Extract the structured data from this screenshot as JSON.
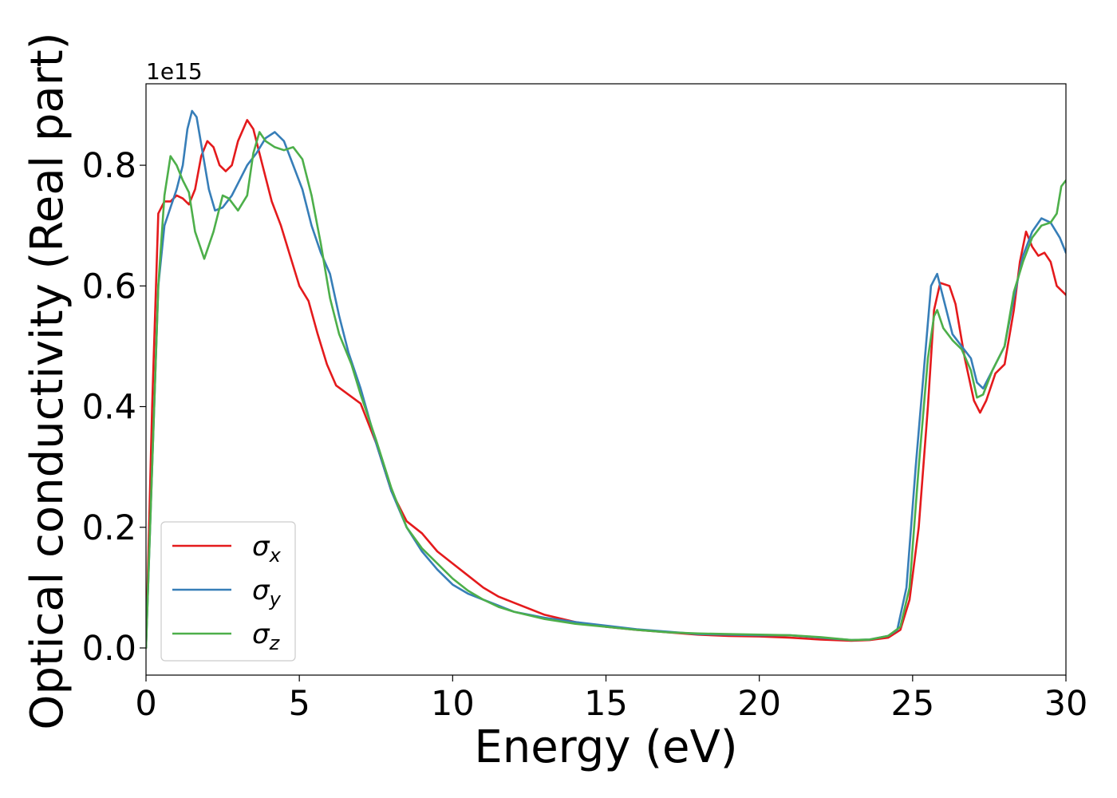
{
  "chart_data": {
    "type": "line",
    "xlabel": "Energy (eV)",
    "ylabel": "Optical conductivity (Real part)",
    "y_offset_label": "1e15",
    "xlim": [
      0,
      30
    ],
    "ylim": [
      -0.045,
      0.935
    ],
    "x_scale_note": "y values in units of 1e15",
    "xticks": [
      0,
      5,
      10,
      15,
      20,
      25,
      30
    ],
    "xtick_labels": [
      "0",
      "5",
      "10",
      "15",
      "20",
      "25",
      "30"
    ],
    "yticks": [
      0.0,
      0.2,
      0.4,
      0.6,
      0.8
    ],
    "ytick_labels": [
      "0.0",
      "0.2",
      "0.4",
      "0.6",
      "0.8"
    ],
    "grid": false,
    "legend_position": "lower-left",
    "series": [
      {
        "name": "σ",
        "subscript": "x",
        "color": "#e41a1c",
        "points": [
          [
            0,
            0
          ],
          [
            0.2,
            0.4
          ],
          [
            0.4,
            0.72
          ],
          [
            0.6,
            0.74
          ],
          [
            0.8,
            0.74
          ],
          [
            1.0,
            0.75
          ],
          [
            1.2,
            0.745
          ],
          [
            1.4,
            0.735
          ],
          [
            1.6,
            0.76
          ],
          [
            1.8,
            0.815
          ],
          [
            2.0,
            0.84
          ],
          [
            2.2,
            0.83
          ],
          [
            2.4,
            0.8
          ],
          [
            2.6,
            0.79
          ],
          [
            2.8,
            0.8
          ],
          [
            3.0,
            0.84
          ],
          [
            3.3,
            0.875
          ],
          [
            3.5,
            0.86
          ],
          [
            3.8,
            0.8
          ],
          [
            4.1,
            0.74
          ],
          [
            4.4,
            0.7
          ],
          [
            4.7,
            0.65
          ],
          [
            5.0,
            0.6
          ],
          [
            5.3,
            0.575
          ],
          [
            5.6,
            0.52
          ],
          [
            5.9,
            0.47
          ],
          [
            6.2,
            0.435
          ],
          [
            6.6,
            0.42
          ],
          [
            7.0,
            0.405
          ],
          [
            7.5,
            0.34
          ],
          [
            8.0,
            0.26
          ],
          [
            8.5,
            0.21
          ],
          [
            9.0,
            0.19
          ],
          [
            9.5,
            0.16
          ],
          [
            10.0,
            0.14
          ],
          [
            10.5,
            0.12
          ],
          [
            11.0,
            0.1
          ],
          [
            11.5,
            0.085
          ],
          [
            12.0,
            0.075
          ],
          [
            13.0,
            0.055
          ],
          [
            14.0,
            0.043
          ],
          [
            15.0,
            0.035
          ],
          [
            16.0,
            0.03
          ],
          [
            17.0,
            0.026
          ],
          [
            18.0,
            0.022
          ],
          [
            19.0,
            0.02
          ],
          [
            20.0,
            0.019
          ],
          [
            21.0,
            0.017
          ],
          [
            22.0,
            0.014
          ],
          [
            23.0,
            0.012
          ],
          [
            23.6,
            0.013
          ],
          [
            24.2,
            0.017
          ],
          [
            24.6,
            0.03
          ],
          [
            24.9,
            0.08
          ],
          [
            25.2,
            0.2
          ],
          [
            25.5,
            0.4
          ],
          [
            25.7,
            0.56
          ],
          [
            25.9,
            0.605
          ],
          [
            26.2,
            0.6
          ],
          [
            26.4,
            0.57
          ],
          [
            26.7,
            0.48
          ],
          [
            27.0,
            0.41
          ],
          [
            27.2,
            0.39
          ],
          [
            27.4,
            0.41
          ],
          [
            27.7,
            0.455
          ],
          [
            28.0,
            0.47
          ],
          [
            28.3,
            0.56
          ],
          [
            28.5,
            0.64
          ],
          [
            28.7,
            0.69
          ],
          [
            28.9,
            0.665
          ],
          [
            29.1,
            0.65
          ],
          [
            29.3,
            0.655
          ],
          [
            29.5,
            0.64
          ],
          [
            29.7,
            0.6
          ],
          [
            30.0,
            0.585
          ]
        ]
      },
      {
        "name": "σ",
        "subscript": "y",
        "color": "#377eb8",
        "points": [
          [
            0,
            0
          ],
          [
            0.2,
            0.3
          ],
          [
            0.4,
            0.6
          ],
          [
            0.6,
            0.7
          ],
          [
            0.8,
            0.73
          ],
          [
            1.0,
            0.76
          ],
          [
            1.2,
            0.8
          ],
          [
            1.35,
            0.86
          ],
          [
            1.5,
            0.89
          ],
          [
            1.65,
            0.88
          ],
          [
            1.85,
            0.82
          ],
          [
            2.05,
            0.76
          ],
          [
            2.25,
            0.725
          ],
          [
            2.5,
            0.73
          ],
          [
            2.8,
            0.75
          ],
          [
            3.0,
            0.77
          ],
          [
            3.3,
            0.8
          ],
          [
            3.6,
            0.82
          ],
          [
            3.9,
            0.845
          ],
          [
            4.2,
            0.855
          ],
          [
            4.5,
            0.84
          ],
          [
            4.8,
            0.8
          ],
          [
            5.1,
            0.76
          ],
          [
            5.4,
            0.7
          ],
          [
            5.7,
            0.655
          ],
          [
            6.0,
            0.62
          ],
          [
            6.3,
            0.55
          ],
          [
            6.6,
            0.49
          ],
          [
            7.0,
            0.43
          ],
          [
            7.5,
            0.34
          ],
          [
            8.0,
            0.26
          ],
          [
            8.5,
            0.2
          ],
          [
            9.0,
            0.16
          ],
          [
            9.5,
            0.13
          ],
          [
            10.0,
            0.105
          ],
          [
            10.5,
            0.09
          ],
          [
            11.0,
            0.08
          ],
          [
            11.5,
            0.07
          ],
          [
            12.0,
            0.06
          ],
          [
            13.0,
            0.05
          ],
          [
            14.0,
            0.043
          ],
          [
            15.0,
            0.037
          ],
          [
            16.0,
            0.031
          ],
          [
            17.0,
            0.027
          ],
          [
            18.0,
            0.023
          ],
          [
            19.0,
            0.022
          ],
          [
            20.0,
            0.021
          ],
          [
            21.0,
            0.021
          ],
          [
            22.0,
            0.017
          ],
          [
            23.0,
            0.013
          ],
          [
            23.6,
            0.014
          ],
          [
            24.2,
            0.02
          ],
          [
            24.5,
            0.03
          ],
          [
            24.8,
            0.1
          ],
          [
            25.1,
            0.3
          ],
          [
            25.4,
            0.48
          ],
          [
            25.6,
            0.6
          ],
          [
            25.8,
            0.62
          ],
          [
            26.0,
            0.58
          ],
          [
            26.3,
            0.52
          ],
          [
            26.6,
            0.5
          ],
          [
            26.9,
            0.48
          ],
          [
            27.1,
            0.44
          ],
          [
            27.3,
            0.43
          ],
          [
            27.6,
            0.46
          ],
          [
            28.0,
            0.5
          ],
          [
            28.3,
            0.58
          ],
          [
            28.6,
            0.65
          ],
          [
            28.9,
            0.69
          ],
          [
            29.2,
            0.712
          ],
          [
            29.5,
            0.705
          ],
          [
            29.8,
            0.68
          ],
          [
            30.0,
            0.655
          ]
        ]
      },
      {
        "name": "σ",
        "subscript": "z",
        "color": "#4daf4a",
        "points": [
          [
            0,
            0
          ],
          [
            0.2,
            0.3
          ],
          [
            0.4,
            0.6
          ],
          [
            0.6,
            0.75
          ],
          [
            0.8,
            0.815
          ],
          [
            1.0,
            0.8
          ],
          [
            1.2,
            0.775
          ],
          [
            1.4,
            0.755
          ],
          [
            1.6,
            0.69
          ],
          [
            1.9,
            0.645
          ],
          [
            2.2,
            0.69
          ],
          [
            2.5,
            0.75
          ],
          [
            2.7,
            0.745
          ],
          [
            3.0,
            0.725
          ],
          [
            3.3,
            0.75
          ],
          [
            3.5,
            0.82
          ],
          [
            3.7,
            0.855
          ],
          [
            3.9,
            0.84
          ],
          [
            4.2,
            0.83
          ],
          [
            4.5,
            0.825
          ],
          [
            4.8,
            0.83
          ],
          [
            5.1,
            0.81
          ],
          [
            5.4,
            0.75
          ],
          [
            5.7,
            0.67
          ],
          [
            6.0,
            0.58
          ],
          [
            6.3,
            0.52
          ],
          [
            6.7,
            0.47
          ],
          [
            7.0,
            0.42
          ],
          [
            7.5,
            0.345
          ],
          [
            8.0,
            0.265
          ],
          [
            8.5,
            0.2
          ],
          [
            9.0,
            0.165
          ],
          [
            9.5,
            0.14
          ],
          [
            10.0,
            0.115
          ],
          [
            10.5,
            0.095
          ],
          [
            11.0,
            0.08
          ],
          [
            11.5,
            0.068
          ],
          [
            12.0,
            0.06
          ],
          [
            13.0,
            0.048
          ],
          [
            14.0,
            0.04
          ],
          [
            15.0,
            0.035
          ],
          [
            16.0,
            0.03
          ],
          [
            17.0,
            0.026
          ],
          [
            18.0,
            0.024
          ],
          [
            19.0,
            0.023
          ],
          [
            20.0,
            0.022
          ],
          [
            21.0,
            0.021
          ],
          [
            22.0,
            0.018
          ],
          [
            23.0,
            0.013
          ],
          [
            23.6,
            0.014
          ],
          [
            24.2,
            0.02
          ],
          [
            24.6,
            0.035
          ],
          [
            24.9,
            0.1
          ],
          [
            25.2,
            0.3
          ],
          [
            25.5,
            0.48
          ],
          [
            25.7,
            0.55
          ],
          [
            25.8,
            0.56
          ],
          [
            26.0,
            0.53
          ],
          [
            26.3,
            0.51
          ],
          [
            26.6,
            0.495
          ],
          [
            26.9,
            0.46
          ],
          [
            27.1,
            0.415
          ],
          [
            27.3,
            0.42
          ],
          [
            27.6,
            0.46
          ],
          [
            28.0,
            0.5
          ],
          [
            28.3,
            0.59
          ],
          [
            28.6,
            0.64
          ],
          [
            28.9,
            0.68
          ],
          [
            29.2,
            0.7
          ],
          [
            29.5,
            0.705
          ],
          [
            29.7,
            0.72
          ],
          [
            29.85,
            0.765
          ],
          [
            30.0,
            0.775
          ]
        ]
      }
    ]
  }
}
